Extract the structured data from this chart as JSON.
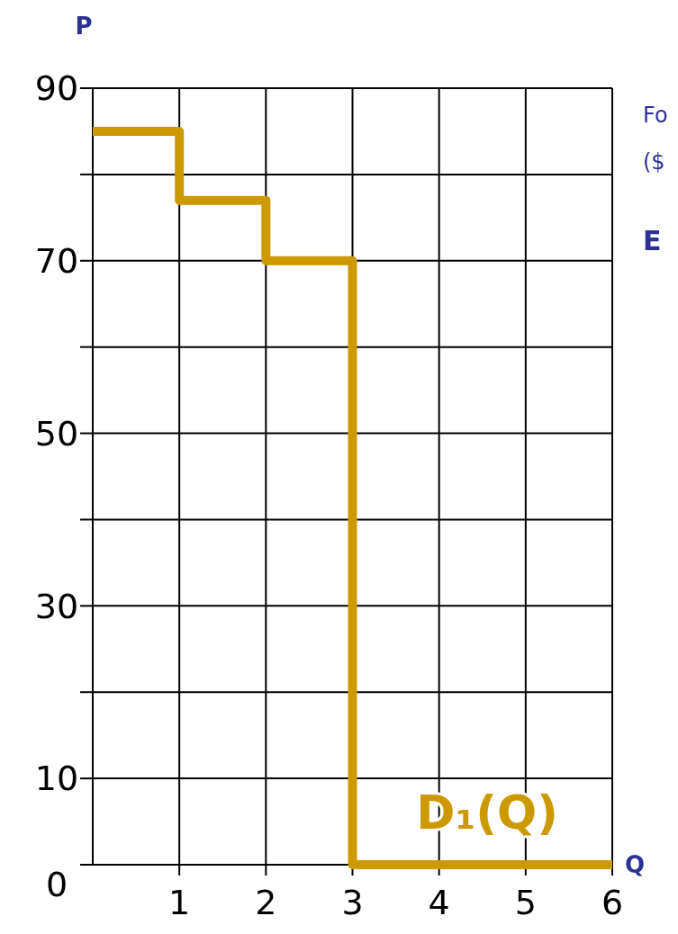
{
  "chart_data": {
    "type": "step",
    "xlabel": "Q",
    "ylabel": "P",
    "x": [
      0,
      1,
      2,
      3,
      6
    ],
    "series": [
      {
        "name": "D₁(Q)",
        "color": "#cc9900",
        "values": [
          85,
          77,
          70,
          0,
          0
        ]
      }
    ],
    "xlim": [
      0,
      6
    ],
    "xticks": [
      1,
      2,
      3,
      4,
      5,
      6
    ],
    "ylim": [
      0,
      90
    ],
    "yticks": [
      0,
      10,
      {
        "value": 20,
        "label": null
      },
      30,
      {
        "value": 40,
        "label": null
      },
      50,
      {
        "value": 60,
        "label": null
      },
      70,
      {
        "value": 80,
        "label": null
      },
      90
    ],
    "grid": true,
    "annotations": [
      "Fo",
      "($",
      "E"
    ]
  }
}
